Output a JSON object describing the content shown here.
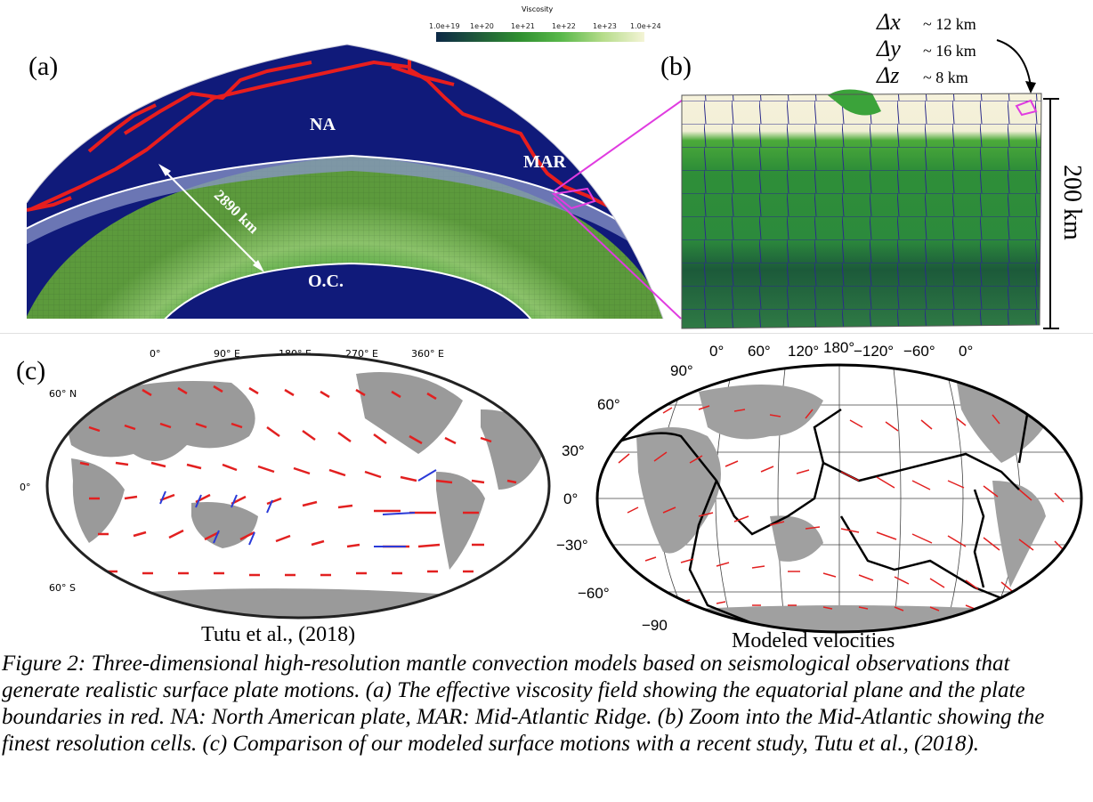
{
  "panel_labels": {
    "a": "(a)",
    "b": "(b)",
    "c": "(c)"
  },
  "colorbar": {
    "title": "Viscosity",
    "ticks": [
      "1.0e+19",
      "1e+20",
      "1e+21",
      "1e+22",
      "1e+23",
      "1.0e+24"
    ],
    "colors": [
      "#14355a",
      "#2a8a2a",
      "#e8f0c8"
    ]
  },
  "panel_a": {
    "labels": {
      "na": "NA",
      "mar": "MAR",
      "oc": "O.C.",
      "depth": "2890 km"
    },
    "colors": {
      "mantle_bg": "#101a7a",
      "plate_boundary": "#e81e1e",
      "highlight": "#e03ce0"
    }
  },
  "panel_b": {
    "deltas": [
      {
        "symbol": "Δx",
        "value": "~ 12 km"
      },
      {
        "symbol": "Δy",
        "value": "~ 16 km"
      },
      {
        "symbol": "Δz",
        "value": "~ 8 km"
      }
    ],
    "depth_label": "200 km"
  },
  "panel_c_left": {
    "title": "Tutu et al., (2018)",
    "top_ticks": [
      "0°",
      "90° E",
      "180° E",
      "270° E",
      "360° E"
    ],
    "side_ticks": [
      "60° N",
      "0°",
      "60° S"
    ]
  },
  "panel_c_right": {
    "title": "Modeled velocities",
    "top_ticks": [
      "0°",
      "60°",
      "120°",
      "180°",
      "−120°",
      "−60°",
      "0°"
    ],
    "side_ticks": [
      "90°",
      "60°",
      "30°",
      "0°",
      "−30°",
      "−60°",
      "−90"
    ]
  },
  "caption": "Figure 2: Three-dimensional high-resolution mantle convection models based on seismological observations that generate realistic surface plate motions. (a) The effective viscosity field showing the equatorial plane and the plate boundaries in red. NA: North American plate, MAR: Mid-Atlantic Ridge. (b) Zoom into the Mid-Atlantic showing the finest resolution cells. (c) Comparison of our modeled surface motions with a recent study, Tutu et al., (2018)."
}
